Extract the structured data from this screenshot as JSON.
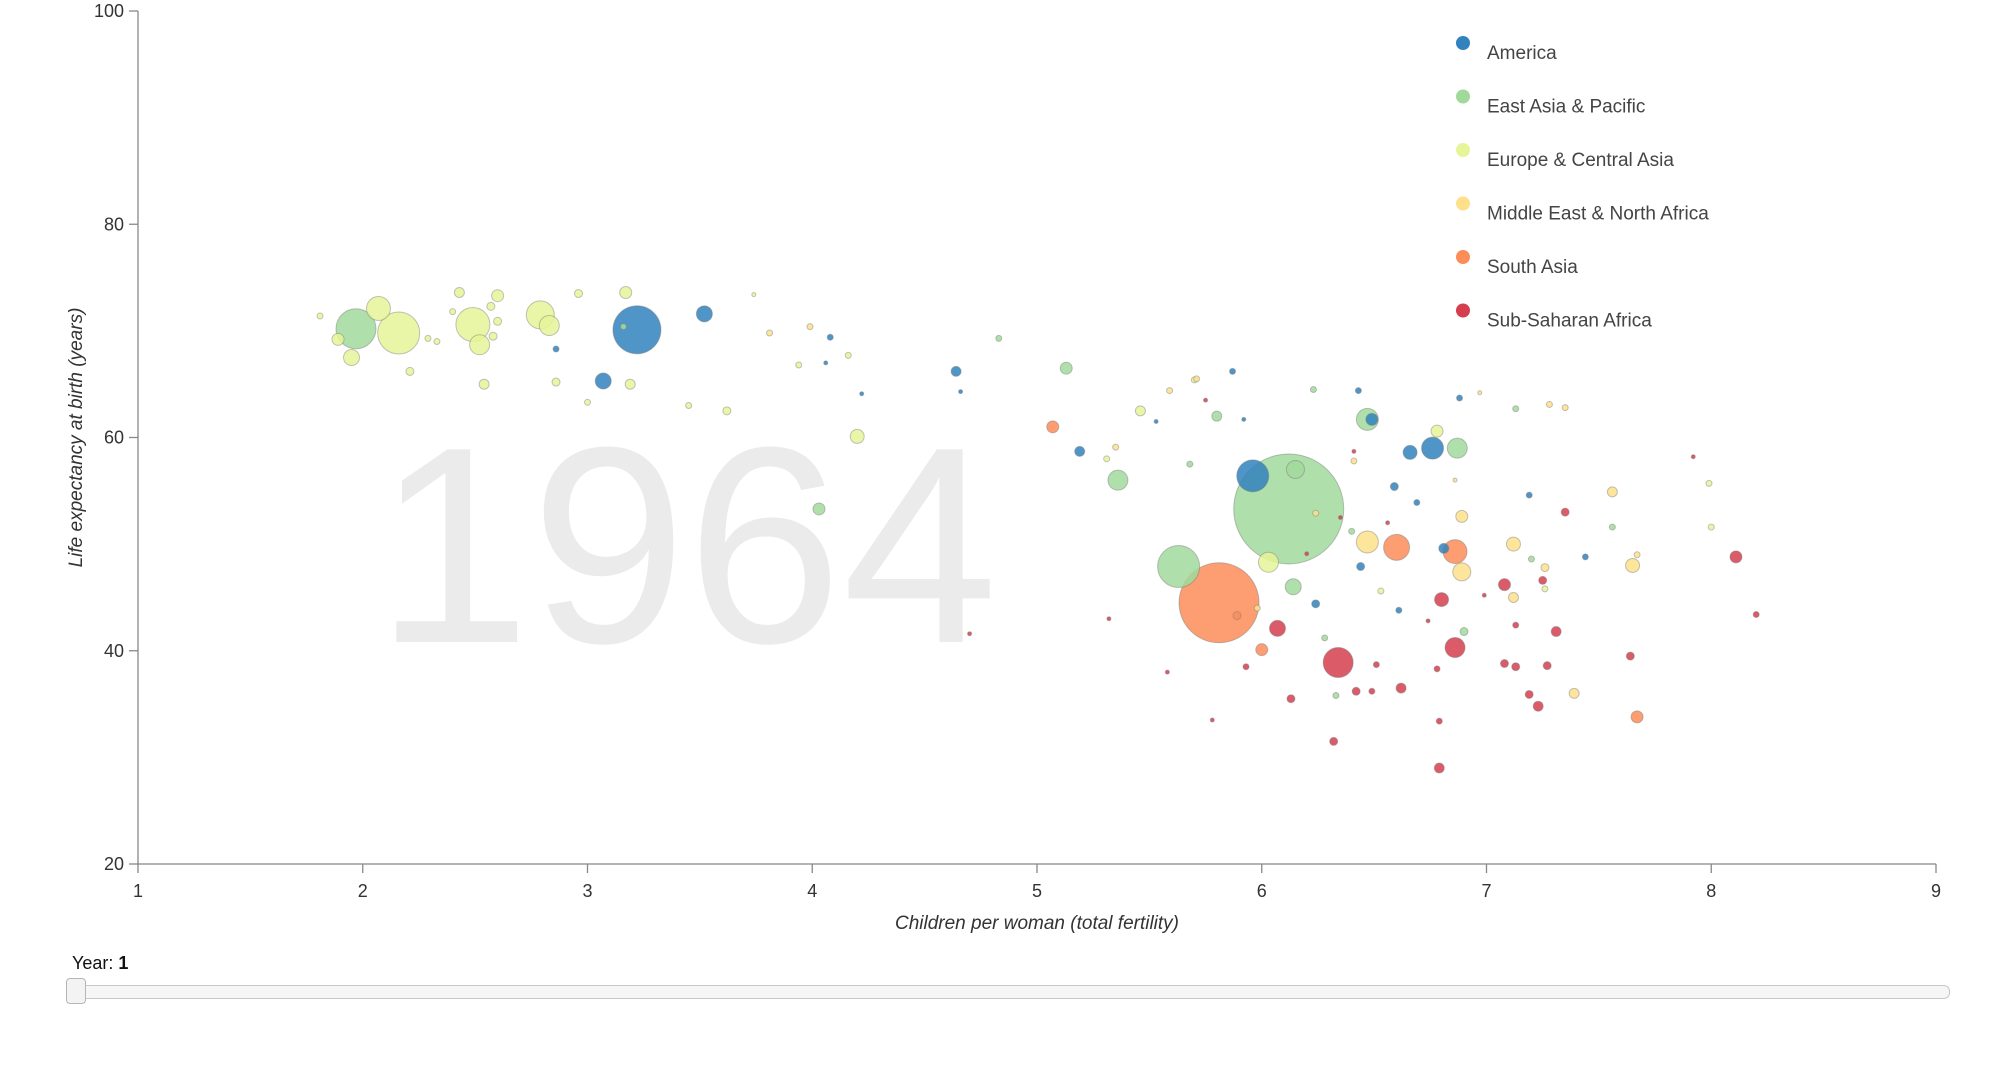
{
  "chart_data": {
    "type": "scatter",
    "subtype": "bubble",
    "year_watermark": "1964",
    "xlabel": "Children per woman (total fertility)",
    "ylabel": "Life expectancy at birth (years)",
    "xlim": [
      1,
      9
    ],
    "ylim": [
      20,
      100
    ],
    "x_ticks": [
      "1",
      "2",
      "3",
      "4",
      "5",
      "6",
      "7",
      "8",
      "9"
    ],
    "y_ticks": [
      "20",
      "40",
      "60",
      "80",
      "100"
    ],
    "grid": false,
    "legend_position": "top-right",
    "bubble_size_encodes": "population",
    "series": [
      {
        "name": "America",
        "color": "#3182bd",
        "points": [
          {
            "x": 3.22,
            "y": 70.1,
            "s": 24
          },
          {
            "x": 3.52,
            "y": 71.6,
            "s": 8
          },
          {
            "x": 3.07,
            "y": 65.3,
            "s": 8
          },
          {
            "x": 2.86,
            "y": 68.3,
            "s": 3
          },
          {
            "x": 4.08,
            "y": 69.4,
            "s": 3
          },
          {
            "x": 4.64,
            "y": 66.2,
            "s": 5
          },
          {
            "x": 5.19,
            "y": 58.7,
            "s": 5
          },
          {
            "x": 5.96,
            "y": 56.4,
            "s": 16
          },
          {
            "x": 6.49,
            "y": 61.7,
            "s": 6
          },
          {
            "x": 6.66,
            "y": 58.6,
            "s": 7
          },
          {
            "x": 6.76,
            "y": 59.0,
            "s": 11
          },
          {
            "x": 6.81,
            "y": 49.6,
            "s": 5
          },
          {
            "x": 6.59,
            "y": 55.4,
            "s": 4
          },
          {
            "x": 6.44,
            "y": 47.9,
            "s": 4
          },
          {
            "x": 6.24,
            "y": 44.4,
            "s": 4
          },
          {
            "x": 6.43,
            "y": 64.4,
            "s": 3
          },
          {
            "x": 6.69,
            "y": 53.9,
            "s": 3
          },
          {
            "x": 6.88,
            "y": 63.7,
            "s": 3
          },
          {
            "x": 6.61,
            "y": 43.8,
            "s": 3
          },
          {
            "x": 7.19,
            "y": 54.6,
            "s": 3
          },
          {
            "x": 7.44,
            "y": 48.8,
            "s": 3
          },
          {
            "x": 5.87,
            "y": 66.2,
            "s": 3
          },
          {
            "x": 5.53,
            "y": 61.5,
            "s": 2
          },
          {
            "x": 5.92,
            "y": 61.7,
            "s": 2
          },
          {
            "x": 4.06,
            "y": 67.0,
            "s": 2
          },
          {
            "x": 4.22,
            "y": 64.1,
            "s": 2
          },
          {
            "x": 4.66,
            "y": 64.3,
            "s": 2
          }
        ]
      },
      {
        "name": "East Asia & Pacific",
        "color": "#a1d99b",
        "points": [
          {
            "x": 6.12,
            "y": 53.3,
            "s": 55
          },
          {
            "x": 1.97,
            "y": 70.2,
            "s": 20
          },
          {
            "x": 5.63,
            "y": 47.9,
            "s": 21
          },
          {
            "x": 5.36,
            "y": 56.0,
            "s": 10
          },
          {
            "x": 6.47,
            "y": 61.7,
            "s": 11
          },
          {
            "x": 6.87,
            "y": 59.0,
            "s": 10
          },
          {
            "x": 6.15,
            "y": 57.0,
            "s": 9
          },
          {
            "x": 6.14,
            "y": 46.0,
            "s": 8
          },
          {
            "x": 5.13,
            "y": 66.5,
            "s": 6
          },
          {
            "x": 4.03,
            "y": 53.3,
            "s": 6
          },
          {
            "x": 4.83,
            "y": 69.3,
            "s": 3
          },
          {
            "x": 5.8,
            "y": 62.0,
            "s": 5
          },
          {
            "x": 6.9,
            "y": 41.8,
            "s": 4
          },
          {
            "x": 6.28,
            "y": 41.2,
            "s": 3
          },
          {
            "x": 6.4,
            "y": 51.2,
            "s": 3
          },
          {
            "x": 6.33,
            "y": 35.8,
            "s": 3
          },
          {
            "x": 6.23,
            "y": 64.5,
            "s": 3
          },
          {
            "x": 7.13,
            "y": 62.7,
            "s": 3
          },
          {
            "x": 7.2,
            "y": 48.6,
            "s": 3
          },
          {
            "x": 7.56,
            "y": 51.6,
            "s": 3
          },
          {
            "x": 5.68,
            "y": 57.5,
            "s": 3
          },
          {
            "x": 3.16,
            "y": 70.4,
            "s": 3
          }
        ]
      },
      {
        "name": "Europe & Central Asia",
        "color": "#e6f598",
        "points": [
          {
            "x": 2.16,
            "y": 69.8,
            "s": 21
          },
          {
            "x": 2.49,
            "y": 70.6,
            "s": 17
          },
          {
            "x": 2.79,
            "y": 71.5,
            "s": 14
          },
          {
            "x": 2.07,
            "y": 72.1,
            "s": 12
          },
          {
            "x": 2.52,
            "y": 68.7,
            "s": 10
          },
          {
            "x": 1.95,
            "y": 67.5,
            "s": 8
          },
          {
            "x": 2.83,
            "y": 70.5,
            "s": 10
          },
          {
            "x": 6.03,
            "y": 48.3,
            "s": 10
          },
          {
            "x": 4.2,
            "y": 60.1,
            "s": 7
          },
          {
            "x": 2.6,
            "y": 73.3,
            "s": 6
          },
          {
            "x": 3.17,
            "y": 73.6,
            "s": 6
          },
          {
            "x": 2.43,
            "y": 73.6,
            "s": 5
          },
          {
            "x": 1.89,
            "y": 69.2,
            "s": 6
          },
          {
            "x": 3.19,
            "y": 65.0,
            "s": 5
          },
          {
            "x": 6.78,
            "y": 60.6,
            "s": 6
          },
          {
            "x": 2.6,
            "y": 70.9,
            "s": 4
          },
          {
            "x": 2.54,
            "y": 65.0,
            "s": 5
          },
          {
            "x": 2.57,
            "y": 72.3,
            "s": 4
          },
          {
            "x": 2.58,
            "y": 69.5,
            "s": 4
          },
          {
            "x": 2.21,
            "y": 66.2,
            "s": 4
          },
          {
            "x": 2.86,
            "y": 65.2,
            "s": 4
          },
          {
            "x": 2.96,
            "y": 73.5,
            "s": 4
          },
          {
            "x": 3.62,
            "y": 62.5,
            "s": 4
          },
          {
            "x": 2.4,
            "y": 71.8,
            "s": 3
          },
          {
            "x": 1.81,
            "y": 71.4,
            "s": 3
          },
          {
            "x": 2.33,
            "y": 69.0,
            "s": 3
          },
          {
            "x": 2.29,
            "y": 69.3,
            "s": 3
          },
          {
            "x": 3.0,
            "y": 63.3,
            "s": 3
          },
          {
            "x": 3.45,
            "y": 63.0,
            "s": 3
          },
          {
            "x": 3.94,
            "y": 66.8,
            "s": 3
          },
          {
            "x": 4.16,
            "y": 67.7,
            "s": 3
          },
          {
            "x": 5.46,
            "y": 62.5,
            "s": 5
          },
          {
            "x": 5.31,
            "y": 58.0,
            "s": 3
          },
          {
            "x": 3.74,
            "y": 73.4,
            "s": 2
          },
          {
            "x": 7.99,
            "y": 55.7,
            "s": 3
          },
          {
            "x": 8.0,
            "y": 51.6,
            "s": 3
          },
          {
            "x": 7.26,
            "y": 45.8,
            "s": 3
          },
          {
            "x": 6.53,
            "y": 45.6,
            "s": 3
          },
          {
            "x": 5.7,
            "y": 65.4,
            "s": 3
          }
        ]
      },
      {
        "name": "Middle East & North Africa",
        "color": "#fee08b",
        "points": [
          {
            "x": 6.47,
            "y": 50.2,
            "s": 11
          },
          {
            "x": 6.89,
            "y": 47.4,
            "s": 9
          },
          {
            "x": 6.89,
            "y": 52.6,
            "s": 6
          },
          {
            "x": 7.12,
            "y": 50.0,
            "s": 7
          },
          {
            "x": 7.65,
            "y": 48.0,
            "s": 7
          },
          {
            "x": 7.56,
            "y": 54.9,
            "s": 5
          },
          {
            "x": 7.12,
            "y": 45.0,
            "s": 5
          },
          {
            "x": 7.39,
            "y": 36.0,
            "s": 5
          },
          {
            "x": 7.26,
            "y": 47.8,
            "s": 4
          },
          {
            "x": 5.35,
            "y": 59.1,
            "s": 3
          },
          {
            "x": 5.98,
            "y": 44.0,
            "s": 3
          },
          {
            "x": 5.71,
            "y": 65.5,
            "s": 3
          },
          {
            "x": 5.59,
            "y": 64.4,
            "s": 3
          },
          {
            "x": 3.81,
            "y": 69.8,
            "s": 3
          },
          {
            "x": 3.99,
            "y": 70.4,
            "s": 3
          },
          {
            "x": 7.67,
            "y": 49.0,
            "s": 3
          },
          {
            "x": 7.35,
            "y": 62.8,
            "s": 3
          },
          {
            "x": 7.28,
            "y": 63.1,
            "s": 3
          },
          {
            "x": 6.97,
            "y": 64.2,
            "s": 2
          },
          {
            "x": 6.41,
            "y": 57.8,
            "s": 3
          },
          {
            "x": 6.24,
            "y": 52.9,
            "s": 3
          },
          {
            "x": 6.86,
            "y": 56.0,
            "s": 2
          }
        ]
      },
      {
        "name": "South Asia",
        "color": "#fc8d59",
        "points": [
          {
            "x": 5.81,
            "y": 44.5,
            "s": 40
          },
          {
            "x": 6.6,
            "y": 49.7,
            "s": 13
          },
          {
            "x": 6.86,
            "y": 49.3,
            "s": 12
          },
          {
            "x": 7.67,
            "y": 33.8,
            "s": 6
          },
          {
            "x": 5.07,
            "y": 61.0,
            "s": 6
          },
          {
            "x": 6.0,
            "y": 40.1,
            "s": 6
          },
          {
            "x": 5.89,
            "y": 43.3,
            "s": 4
          }
        ]
      },
      {
        "name": "Sub-Saharan Africa",
        "color": "#d53e4f",
        "points": [
          {
            "x": 6.34,
            "y": 38.9,
            "s": 15
          },
          {
            "x": 6.86,
            "y": 40.3,
            "s": 10
          },
          {
            "x": 6.07,
            "y": 42.1,
            "s": 8
          },
          {
            "x": 8.11,
            "y": 48.8,
            "s": 6
          },
          {
            "x": 6.8,
            "y": 44.8,
            "s": 7
          },
          {
            "x": 7.08,
            "y": 46.2,
            "s": 6
          },
          {
            "x": 6.62,
            "y": 36.5,
            "s": 5
          },
          {
            "x": 6.79,
            "y": 29.0,
            "s": 5
          },
          {
            "x": 7.31,
            "y": 41.8,
            "s": 5
          },
          {
            "x": 7.23,
            "y": 34.8,
            "s": 5
          },
          {
            "x": 7.64,
            "y": 39.5,
            "s": 4
          },
          {
            "x": 7.13,
            "y": 38.5,
            "s": 4
          },
          {
            "x": 7.08,
            "y": 38.8,
            "s": 4
          },
          {
            "x": 7.27,
            "y": 38.6,
            "s": 4
          },
          {
            "x": 6.42,
            "y": 36.2,
            "s": 4
          },
          {
            "x": 7.19,
            "y": 35.9,
            "s": 4
          },
          {
            "x": 7.25,
            "y": 46.6,
            "s": 4
          },
          {
            "x": 7.35,
            "y": 53.0,
            "s": 4
          },
          {
            "x": 8.2,
            "y": 43.4,
            "s": 3
          },
          {
            "x": 6.13,
            "y": 35.5,
            "s": 4
          },
          {
            "x": 6.32,
            "y": 31.5,
            "s": 4
          },
          {
            "x": 6.79,
            "y": 33.4,
            "s": 3
          },
          {
            "x": 6.78,
            "y": 38.3,
            "s": 3
          },
          {
            "x": 6.51,
            "y": 38.7,
            "s": 3
          },
          {
            "x": 6.49,
            "y": 36.2,
            "s": 3
          },
          {
            "x": 7.13,
            "y": 42.4,
            "s": 3
          },
          {
            "x": 5.93,
            "y": 38.5,
            "s": 3
          },
          {
            "x": 5.78,
            "y": 33.5,
            "s": 2
          },
          {
            "x": 5.58,
            "y": 38.0,
            "s": 2
          },
          {
            "x": 5.32,
            "y": 43.0,
            "s": 2
          },
          {
            "x": 4.7,
            "y": 41.6,
            "s": 2
          },
          {
            "x": 6.74,
            "y": 42.8,
            "s": 2
          },
          {
            "x": 6.99,
            "y": 45.2,
            "s": 2
          },
          {
            "x": 6.56,
            "y": 52.0,
            "s": 2
          },
          {
            "x": 6.35,
            "y": 52.5,
            "s": 2
          },
          {
            "x": 7.92,
            "y": 58.2,
            "s": 2
          },
          {
            "x": 6.41,
            "y": 58.7,
            "s": 2
          },
          {
            "x": 6.2,
            "y": 49.1,
            "s": 2
          },
          {
            "x": 5.75,
            "y": 63.5,
            "s": 2
          }
        ]
      }
    ]
  },
  "controls": {
    "year_label": "Year:",
    "year_value": "1",
    "slider_position": 0
  }
}
